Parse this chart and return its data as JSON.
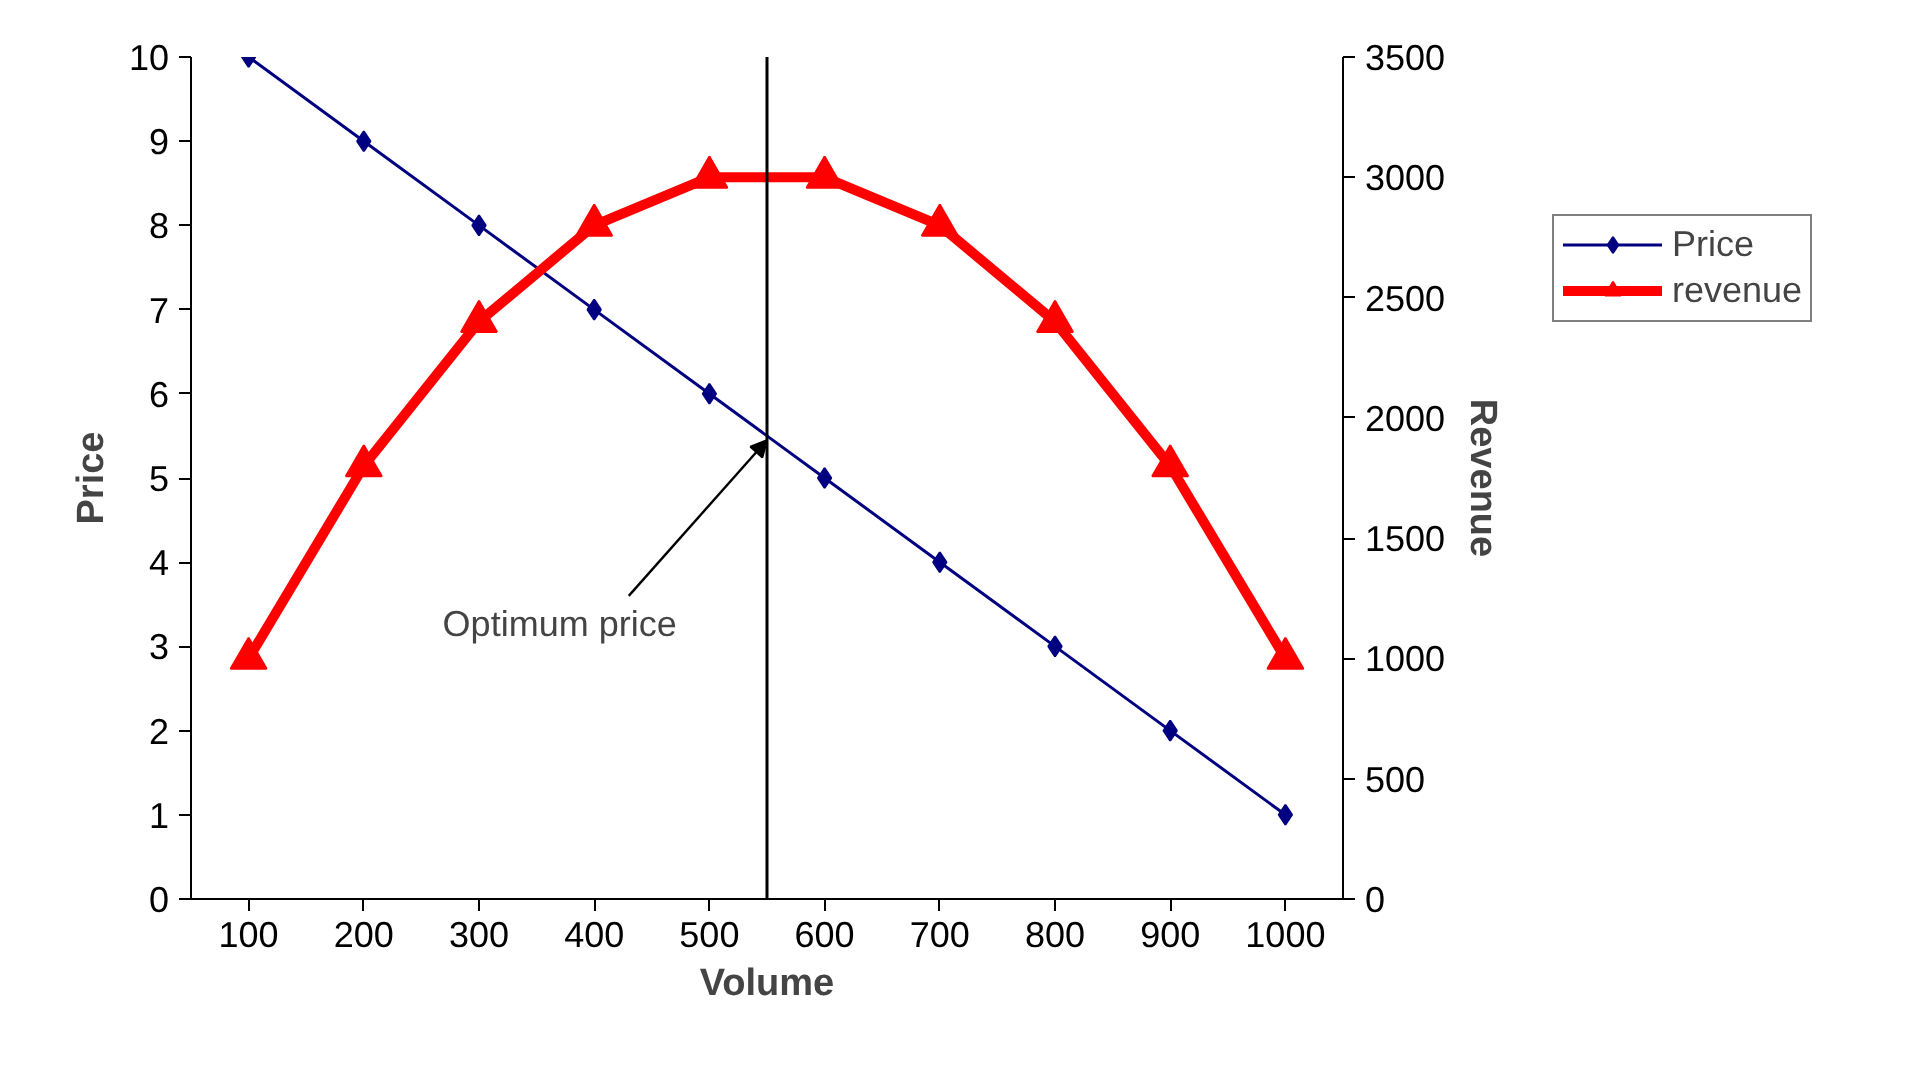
{
  "chart_data": {
    "type": "line",
    "xlabel": "Volume",
    "ylabel": "Price",
    "y2label": "Revenue",
    "x": [
      100,
      200,
      300,
      400,
      500,
      600,
      700,
      800,
      900,
      1000
    ],
    "xlim": [
      50,
      1050
    ],
    "xticks": [
      100,
      200,
      300,
      400,
      500,
      600,
      700,
      800,
      900,
      1000
    ],
    "ylim": [
      0,
      10
    ],
    "yticks": [
      0,
      1,
      2,
      3,
      4,
      5,
      6,
      7,
      8,
      9,
      10
    ],
    "y2lim": [
      0,
      3500
    ],
    "y2ticks": [
      0,
      500,
      1000,
      1500,
      2000,
      2500,
      3000,
      3500
    ],
    "series": [
      {
        "name": "Price",
        "color": "#000080",
        "marker": "diamond",
        "values": [
          10,
          9,
          8,
          7,
          6,
          5,
          4,
          3,
          2,
          1
        ]
      },
      {
        "name": "revenue",
        "color": "#ff0000",
        "marker": "triangle",
        "axis": "y2",
        "values": [
          1000,
          1800,
          2400,
          2800,
          3000,
          3000,
          2800,
          2400,
          1800,
          1000
        ]
      }
    ],
    "ref_lines": [
      {
        "axis": "x",
        "value": 550,
        "color": "#000000"
      }
    ],
    "annotations": [
      {
        "text": "Optimum price",
        "x": 550,
        "y": 5.45
      }
    ],
    "grid": false,
    "legend": "right"
  }
}
